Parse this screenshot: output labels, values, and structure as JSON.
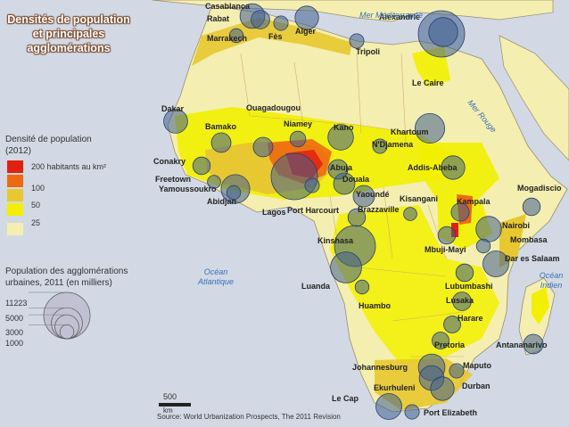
{
  "title": "Densités de population et principales agglomérations",
  "density_legend": {
    "heading": "Densité de population (2012)",
    "classes": [
      {
        "label": "200 habitants au km²",
        "color": "#e02010"
      },
      {
        "label": "100",
        "color": "#ee6a10"
      },
      {
        "label": "50",
        "color": "#e8c830"
      },
      {
        "label": "25",
        "color": "#f2f000"
      },
      {
        "label": "",
        "color": "#f4eeb0"
      }
    ]
  },
  "population_legend": {
    "heading": "Population des agglomérations urbaines, 2011 (en milliers)",
    "values": [
      "11223",
      "5000",
      "3000",
      "1000"
    ]
  },
  "seas": [
    {
      "text": "Mer Méditerranée"
    },
    {
      "text": "Mer Rouge"
    },
    {
      "text": "Océan Atlantique"
    },
    {
      "text": "Océan Indien"
    }
  ],
  "cities": [
    {
      "name": "Casablanca",
      "pop": 3200
    },
    {
      "name": "Rabat",
      "pop": 1800
    },
    {
      "name": "Marrakech",
      "pop": 1000
    },
    {
      "name": "Fès",
      "pop": 1100
    },
    {
      "name": "Alger",
      "pop": 2900
    },
    {
      "name": "Alexandrie",
      "pop": 4400
    },
    {
      "name": "Tripoli",
      "pop": 1100
    },
    {
      "name": "Le Caire",
      "pop": 11200
    },
    {
      "name": "Dakar",
      "pop": 3000
    },
    {
      "name": "Ouagadougou",
      "pop": 2000
    },
    {
      "name": "Bamako",
      "pop": 2000
    },
    {
      "name": "Niamey",
      "pop": 1300
    },
    {
      "name": "Kano",
      "pop": 3400
    },
    {
      "name": "Khartoum",
      "pop": 4600
    },
    {
      "name": "N'Djamena",
      "pop": 1100
    },
    {
      "name": "Conakry",
      "pop": 1600
    },
    {
      "name": "Freetown",
      "pop": 900
    },
    {
      "name": "Yamoussoukro",
      "pop": 1000
    },
    {
      "name": "Abidjan",
      "pop": 4300
    },
    {
      "name": "Abuja",
      "pop": 2000
    },
    {
      "name": "Lagos",
      "pop": 11200
    },
    {
      "name": "Douala",
      "pop": 2400
    },
    {
      "name": "Port Harcourt",
      "pop": 1100
    },
    {
      "name": "Addis-Abeba",
      "pop": 2900
    },
    {
      "name": "Yaoundé",
      "pop": 2400
    },
    {
      "name": "Kisangani",
      "pop": 900
    },
    {
      "name": "Kampala",
      "pop": 1700
    },
    {
      "name": "Mogadiscio",
      "pop": 1600
    },
    {
      "name": "Brazzaville",
      "pop": 1600
    },
    {
      "name": "Nairobi",
      "pop": 3400
    },
    {
      "name": "Kinshasa",
      "pop": 8800
    },
    {
      "name": "Mombasa",
      "pop": 1000
    },
    {
      "name": "Mbuji-Mayi",
      "pop": 1600
    },
    {
      "name": "Dar es Salaam",
      "pop": 3500
    },
    {
      "name": "Luanda",
      "pop": 5000
    },
    {
      "name": "Lubumbashi",
      "pop": 1600
    },
    {
      "name": "Huambo",
      "pop": 1000
    },
    {
      "name": "Lusaka",
      "pop": 1800
    },
    {
      "name": "Harare",
      "pop": 1500
    },
    {
      "name": "Pretoria",
      "pop": 1500
    },
    {
      "name": "Antananarivo",
      "pop": 2000
    },
    {
      "name": "Maputo",
      "pop": 1100
    },
    {
      "name": "Johannesburg",
      "pop": 3700
    },
    {
      "name": "Ekurhuleni",
      "pop": 3200
    },
    {
      "name": "Durban",
      "pop": 2900
    },
    {
      "name": "Le Cap",
      "pop": 3500
    },
    {
      "name": "Port Elizabeth",
      "pop": 1100
    }
  ],
  "scale": {
    "value": "500",
    "unit": "km"
  },
  "source": "Source: World Urbanization Prospects, The 2011 Revision"
}
